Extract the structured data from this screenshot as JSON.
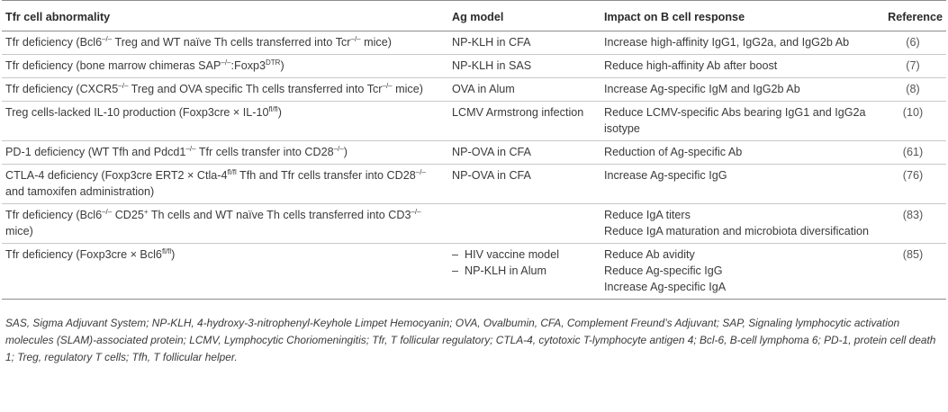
{
  "table": {
    "headers": [
      "Tfr cell abnormality",
      "Ag model",
      "Impact on B cell response",
      "Reference"
    ],
    "rows": [
      {
        "abnormality": [
          "Tfr deficiency (Bcl6",
          "–/–",
          " Treg and WT naïve Th cells transferred into Tcr",
          "–/–",
          " mice)"
        ],
        "ag_model": [
          "NP-KLH in CFA"
        ],
        "impact": [
          "Increase high-affinity IgG1, IgG2a, and IgG2b Ab"
        ],
        "reference": "(6)"
      },
      {
        "abnormality": [
          "Tfr deficiency (bone marrow chimeras SAP",
          "–/–",
          ":Foxp3",
          "DTR",
          ")"
        ],
        "ag_model": [
          "NP-KLH in SAS"
        ],
        "impact": [
          "Reduce high-affinity Ab after boost"
        ],
        "reference": "(7)"
      },
      {
        "abnormality": [
          "Tfr deficiency (CXCR5",
          "–/–",
          " Treg and OVA specific Th cells transferred into Tcr",
          "–/–",
          " mice)"
        ],
        "ag_model": [
          "OVA in Alum"
        ],
        "impact": [
          "Increase Ag-specific IgM and IgG2b Ab"
        ],
        "reference": "(8)"
      },
      {
        "abnormality": [
          "Treg cells-lacked IL-10 production (Foxp3cre × IL-10",
          "fl/fl",
          ")"
        ],
        "ag_model": [
          "LCMV Armstrong infection"
        ],
        "impact": [
          "Reduce LCMV-specific Abs bearing IgG1 and IgG2a isotype"
        ],
        "reference": "(10)"
      },
      {
        "abnormality": [
          "PD-1 deficiency (WT Tfh and Pdcd1",
          "–/–",
          " Tfr cells transfer into CD28",
          "–/–",
          ")"
        ],
        "ag_model": [
          "NP-OVA in CFA"
        ],
        "impact": [
          "Reduction of Ag-specific Ab"
        ],
        "reference": "(61)"
      },
      {
        "abnormality": [
          "CTLA-4 deficiency (Foxp3cre ERT2 × Ctla-4",
          "fl/fl",
          " Tfh and Tfr cells transfer into CD28",
          "–/–",
          " and tamoxifen administration)"
        ],
        "ag_model": [
          "NP-OVA in CFA"
        ],
        "impact": [
          "Increase Ag-specific IgG"
        ],
        "reference": "(76)"
      },
      {
        "abnormality": [
          "Tfr deficiency (Bcl6",
          "–/–",
          " CD25",
          "+",
          " Th cells and WT naïve Th cells transferred into CD3",
          "–/–",
          " mice)"
        ],
        "ag_model": [],
        "impact": [
          "Reduce IgA titers",
          "Reduce IgA maturation and microbiota diversification"
        ],
        "reference": "(83)"
      },
      {
        "abnormality": [
          "Tfr deficiency (Foxp3cre × Bcl6",
          "fl/fl",
          ")"
        ],
        "ag_model": [
          "HIV vaccine model",
          "NP-KLH in Alum"
        ],
        "impact": [
          "Reduce Ab avidity",
          "Reduce Ag-specific IgG",
          "Increase Ag-specific IgA"
        ],
        "reference": "(85)"
      }
    ]
  },
  "footnote": "SAS, Sigma Adjuvant System; NP-KLH, 4-hydroxy-3-nitrophenyl-Keyhole Limpet Hemocyanin; OVA, Ovalbumin, CFA, Complement Freund’s Adjuvant; SAP, Signaling lymphocytic activation molecules (SLAM)-associated protein; LCMV, Lymphocytic Choriomeningitis; Tfr, T follicular regulatory; CTLA-4, cytotoxic T-lymphocyte antigen 4; Bcl-6, B-cell lymphoma 6; PD-1, protein cell death 1; Treg, regulatory T cells; Tfh, T follicular helper."
}
